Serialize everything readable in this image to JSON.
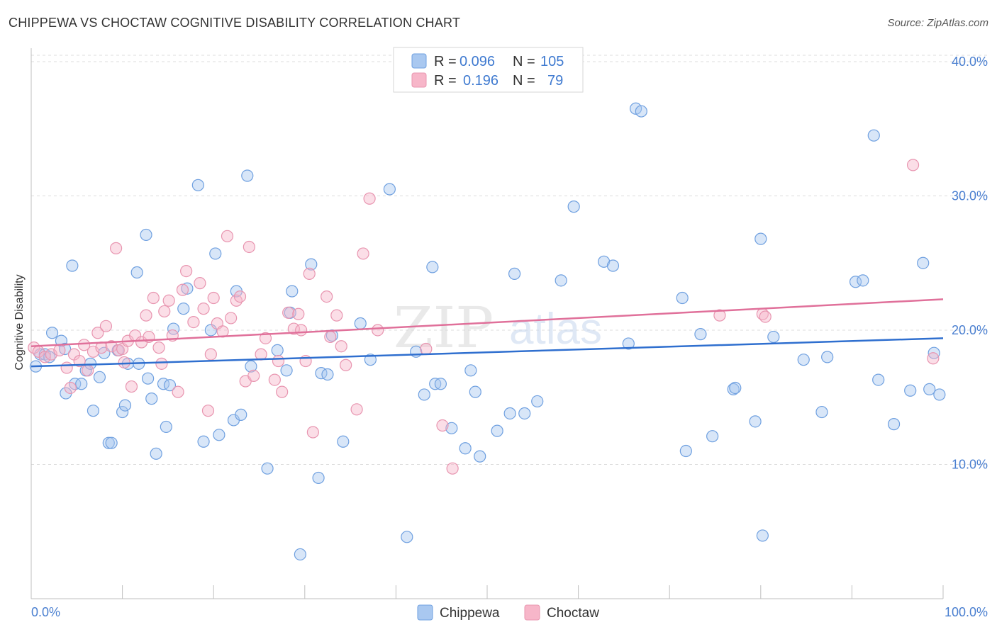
{
  "title": "CHIPPEWA VS CHOCTAW COGNITIVE DISABILITY CORRELATION CHART",
  "source": "Source: ZipAtlas.com",
  "watermark": {
    "main": "ZIP",
    "sub": "atlas"
  },
  "legend": {
    "rows": [
      {
        "r_label": "R =",
        "r_value": "0.096",
        "n_label": "N =",
        "n_value": "105",
        "color": "#a9c8f0"
      },
      {
        "r_label": "R =",
        "r_value": "0.196",
        "n_label": "N =",
        "n_value": "79",
        "color": "#f7b6c9"
      }
    ]
  },
  "bottom_legend": [
    {
      "label": "Chippewa",
      "color": "#a9c8f0"
    },
    {
      "label": "Choctaw",
      "color": "#f7b6c9"
    }
  ],
  "chart_data": {
    "type": "scatter",
    "title": "CHIPPEWA VS CHOCTAW COGNITIVE DISABILITY CORRELATION CHART",
    "xlabel": "",
    "ylabel": "Cognitive Disability",
    "xlim": [
      0,
      100
    ],
    "ylim": [
      0,
      41
    ],
    "x_tick_labels": [
      "0.0%",
      "100.0%"
    ],
    "y_ticks": [
      10,
      20,
      30,
      40
    ],
    "y_tick_labels": [
      "10.0%",
      "20.0%",
      "30.0%",
      "40.0%"
    ],
    "grid": true,
    "legend_position": "top-center",
    "series": [
      {
        "name": "Chippewa",
        "color": "#6fa0e0",
        "fill": "#a9c8f0",
        "trend": [
          [
            0,
            17.3
          ],
          [
            100,
            19.4
          ]
        ],
        "points": [
          [
            0.5,
            17.3
          ],
          [
            1,
            18.2
          ],
          [
            1.5,
            18.2
          ],
          [
            2,
            18.0
          ],
          [
            2.3,
            19.8
          ],
          [
            3.3,
            19.2
          ],
          [
            3.7,
            18.6
          ],
          [
            3.8,
            15.3
          ],
          [
            4.5,
            24.8
          ],
          [
            4.8,
            16.0
          ],
          [
            5.5,
            16.0
          ],
          [
            6,
            17.0
          ],
          [
            6.5,
            17.5
          ],
          [
            6.8,
            14.0
          ],
          [
            7.5,
            16.5
          ],
          [
            8,
            18.3
          ],
          [
            8.5,
            11.6
          ],
          [
            8.8,
            11.6
          ],
          [
            9.5,
            18.5
          ],
          [
            10,
            13.9
          ],
          [
            10.3,
            14.4
          ],
          [
            10.6,
            17.5
          ],
          [
            11.6,
            24.3
          ],
          [
            11.8,
            17.5
          ],
          [
            12.6,
            27.1
          ],
          [
            12.8,
            16.4
          ],
          [
            13.2,
            14.9
          ],
          [
            13.7,
            10.8
          ],
          [
            14.5,
            16.0
          ],
          [
            14.8,
            12.8
          ],
          [
            15.2,
            15.9
          ],
          [
            15.6,
            20.1
          ],
          [
            16.7,
            21.6
          ],
          [
            17.1,
            23.1
          ],
          [
            18.3,
            30.8
          ],
          [
            18.9,
            11.7
          ],
          [
            19.7,
            20.0
          ],
          [
            20.2,
            25.7
          ],
          [
            20.6,
            12.2
          ],
          [
            22.2,
            13.3
          ],
          [
            22.5,
            22.9
          ],
          [
            23,
            13.7
          ],
          [
            23.7,
            31.5
          ],
          [
            24.1,
            17.3
          ],
          [
            25.9,
            9.7
          ],
          [
            27,
            18.5
          ],
          [
            28,
            17.0
          ],
          [
            28.4,
            21.3
          ],
          [
            28.6,
            22.9
          ],
          [
            29.5,
            3.3
          ],
          [
            30.7,
            24.9
          ],
          [
            31.5,
            9.0
          ],
          [
            31.8,
            16.8
          ],
          [
            32.5,
            16.7
          ],
          [
            33,
            19.6
          ],
          [
            34.2,
            11.7
          ],
          [
            36.1,
            20.5
          ],
          [
            37.2,
            17.8
          ],
          [
            39.3,
            30.5
          ],
          [
            41.2,
            4.6
          ],
          [
            42.2,
            18.4
          ],
          [
            43.1,
            15.2
          ],
          [
            44,
            24.7
          ],
          [
            44.3,
            16.0
          ],
          [
            44.9,
            16.0
          ],
          [
            46.1,
            12.7
          ],
          [
            47.6,
            11.2
          ],
          [
            48.2,
            17.0
          ],
          [
            48.7,
            15.4
          ],
          [
            49.2,
            10.6
          ],
          [
            51.1,
            12.5
          ],
          [
            52.5,
            13.8
          ],
          [
            53,
            24.2
          ],
          [
            54.1,
            13.8
          ],
          [
            55.5,
            14.7
          ],
          [
            58.1,
            23.7
          ],
          [
            59.5,
            29.2
          ],
          [
            62.8,
            25.1
          ],
          [
            63.8,
            24.8
          ],
          [
            65.5,
            19.0
          ],
          [
            66.3,
            36.5
          ],
          [
            66.9,
            36.3
          ],
          [
            71.4,
            22.4
          ],
          [
            71.8,
            11.0
          ],
          [
            73.4,
            19.7
          ],
          [
            74.7,
            12.1
          ],
          [
            77,
            15.6
          ],
          [
            77.2,
            15.7
          ],
          [
            79.4,
            13.2
          ],
          [
            80,
            26.8
          ],
          [
            80.2,
            4.7
          ],
          [
            81.4,
            19.5
          ],
          [
            84.7,
            17.8
          ],
          [
            86.7,
            13.9
          ],
          [
            87.3,
            18.0
          ],
          [
            90.4,
            23.6
          ],
          [
            91.2,
            23.7
          ],
          [
            92.4,
            34.5
          ],
          [
            92.9,
            16.3
          ],
          [
            94.6,
            13.0
          ],
          [
            96.4,
            15.5
          ],
          [
            97.8,
            25.0
          ],
          [
            98.5,
            15.6
          ],
          [
            99,
            18.3
          ],
          [
            99.6,
            15.2
          ]
        ]
      },
      {
        "name": "Choctaw",
        "color": "#e895b0",
        "fill": "#f7b6c9",
        "trend": [
          [
            0,
            18.8
          ],
          [
            100,
            22.3
          ]
        ],
        "points": [
          [
            0.3,
            18.7
          ],
          [
            0.8,
            18.4
          ],
          [
            1.5,
            18.0
          ],
          [
            2.2,
            18.2
          ],
          [
            3.1,
            18.5
          ],
          [
            3.9,
            17.2
          ],
          [
            4.3,
            15.7
          ],
          [
            4.7,
            18.2
          ],
          [
            5.3,
            17.7
          ],
          [
            5.8,
            18.9
          ],
          [
            6.2,
            17.0
          ],
          [
            6.8,
            18.4
          ],
          [
            7.3,
            19.8
          ],
          [
            7.7,
            18.7
          ],
          [
            8.2,
            20.3
          ],
          [
            8.8,
            18.8
          ],
          [
            9.3,
            26.1
          ],
          [
            9.6,
            18.5
          ],
          [
            10,
            18.6
          ],
          [
            10.2,
            17.6
          ],
          [
            10.6,
            19.2
          ],
          [
            11,
            15.8
          ],
          [
            11.4,
            19.6
          ],
          [
            12.1,
            19.1
          ],
          [
            12.6,
            21.1
          ],
          [
            12.9,
            19.5
          ],
          [
            13.4,
            22.4
          ],
          [
            14,
            18.7
          ],
          [
            14.3,
            17.5
          ],
          [
            14.6,
            21.4
          ],
          [
            15.1,
            22.2
          ],
          [
            15.5,
            19.6
          ],
          [
            16.1,
            15.4
          ],
          [
            16.6,
            23.0
          ],
          [
            17,
            24.4
          ],
          [
            17.8,
            20.6
          ],
          [
            18.5,
            23.5
          ],
          [
            18.9,
            21.6
          ],
          [
            19.4,
            14.0
          ],
          [
            19.7,
            18.2
          ],
          [
            20,
            22.4
          ],
          [
            20.4,
            20.5
          ],
          [
            21,
            19.9
          ],
          [
            21.5,
            27.0
          ],
          [
            21.9,
            20.9
          ],
          [
            22.5,
            22.2
          ],
          [
            22.9,
            22.5
          ],
          [
            23.5,
            16.2
          ],
          [
            23.9,
            26.2
          ],
          [
            24.4,
            16.6
          ],
          [
            25.2,
            18.2
          ],
          [
            25.7,
            19.4
          ],
          [
            26.7,
            16.3
          ],
          [
            27.1,
            17.7
          ],
          [
            27.5,
            15.4
          ],
          [
            28.2,
            21.3
          ],
          [
            28.8,
            20.1
          ],
          [
            29.3,
            21.2
          ],
          [
            29.6,
            20.0
          ],
          [
            30.1,
            17.7
          ],
          [
            30.5,
            24.2
          ],
          [
            30.9,
            12.4
          ],
          [
            32.4,
            22.5
          ],
          [
            32.8,
            19.5
          ],
          [
            33.5,
            21.1
          ],
          [
            34,
            18.8
          ],
          [
            34.5,
            17.4
          ],
          [
            35.7,
            14.1
          ],
          [
            36.4,
            25.7
          ],
          [
            37.1,
            29.8
          ],
          [
            38,
            20.0
          ],
          [
            43.3,
            18.6
          ],
          [
            45.1,
            12.9
          ],
          [
            46.2,
            9.7
          ],
          [
            75.5,
            21.1
          ],
          [
            80.2,
            21.2
          ],
          [
            80.5,
            21.0
          ],
          [
            96.7,
            32.3
          ],
          [
            98.9,
            17.9
          ]
        ]
      }
    ]
  }
}
